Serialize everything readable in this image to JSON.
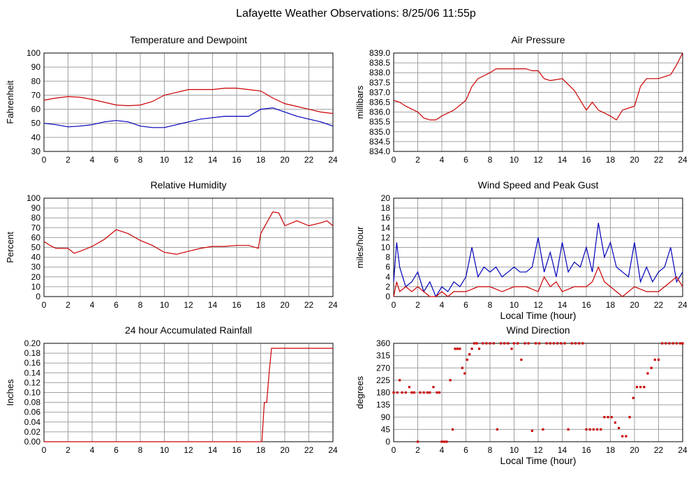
{
  "page": {
    "title": "Lafayette Weather Observations: 8/25/06 11:55p"
  },
  "colors": {
    "red": "#cc0000",
    "blue": "#0000bb",
    "grid": "#a0a0a0",
    "frame": "#000000"
  },
  "chart_data": [
    {
      "id": "temperature",
      "type": "line",
      "title": "Temperature and Dewpoint",
      "xlabel": "",
      "ylabel": "Fahrenheit",
      "xlim": [
        0,
        24
      ],
      "ylim": [
        30,
        100
      ],
      "xticks": [
        0,
        2,
        4,
        6,
        8,
        10,
        12,
        14,
        16,
        18,
        20,
        22,
        24
      ],
      "yticks": [
        30,
        40,
        50,
        60,
        70,
        80,
        90,
        100
      ],
      "ytick_labels": [
        "30",
        "40",
        "50",
        "60",
        "70",
        "80",
        "90",
        "100"
      ],
      "grid": true,
      "series": [
        {
          "color": "red",
          "x": [
            0,
            1,
            2,
            3,
            4,
            5,
            6,
            7,
            8,
            9,
            10,
            11,
            12,
            13,
            14,
            15,
            16,
            17,
            18,
            19,
            20,
            21,
            22,
            23,
            24
          ],
          "y": [
            66.5,
            68,
            69,
            68.5,
            67,
            65,
            63,
            62.5,
            63,
            65.5,
            70,
            72,
            74,
            74,
            74,
            75,
            75,
            74,
            73,
            68,
            64,
            62,
            60,
            58,
            57
          ]
        },
        {
          "color": "blue",
          "x": [
            0,
            1,
            2,
            3,
            4,
            5,
            6,
            7,
            8,
            9,
            10,
            11,
            12,
            13,
            14,
            15,
            16,
            17,
            18,
            19,
            20,
            21,
            22,
            23,
            24
          ],
          "y": [
            50,
            49,
            47.5,
            48,
            49,
            51,
            52,
            51,
            48,
            47,
            47,
            49,
            51,
            53,
            54,
            55,
            55,
            55,
            60,
            61,
            58,
            55,
            53,
            51,
            48
          ]
        }
      ]
    },
    {
      "id": "pressure",
      "type": "line",
      "title": "Air Pressure",
      "xlabel": "",
      "ylabel": "millibars",
      "xlim": [
        0,
        24
      ],
      "ylim": [
        834.0,
        839.0
      ],
      "xticks": [
        0,
        2,
        4,
        6,
        8,
        10,
        12,
        14,
        16,
        18,
        20,
        22,
        24
      ],
      "yticks": [
        834.0,
        834.5,
        835.0,
        835.5,
        836.0,
        836.5,
        837.0,
        837.5,
        838.0,
        838.5,
        839.0
      ],
      "ytick_labels": [
        "834.0",
        "834.5",
        "835.0",
        "835.5",
        "836.0",
        "836.5",
        "837.0",
        "837.5",
        "838.0",
        "838.5",
        "839.0"
      ],
      "grid": true,
      "series": [
        {
          "color": "red",
          "x": [
            0,
            0.5,
            1,
            2,
            2.5,
            3,
            3.5,
            4,
            5,
            6,
            6.5,
            7,
            8,
            8.5,
            9,
            10,
            11,
            11.5,
            12,
            12.5,
            13,
            14,
            15,
            15.5,
            16,
            16.5,
            17,
            18,
            18.5,
            19,
            20,
            20.5,
            21,
            22,
            23,
            23.5,
            24
          ],
          "y": [
            836.6,
            836.5,
            836.3,
            836.0,
            835.7,
            835.6,
            835.6,
            835.8,
            836.1,
            836.6,
            837.3,
            837.7,
            838.0,
            838.2,
            838.2,
            838.2,
            838.2,
            838.1,
            838.1,
            837.7,
            837.6,
            837.7,
            837.1,
            836.6,
            836.1,
            836.5,
            836.1,
            835.8,
            835.6,
            836.1,
            836.3,
            837.3,
            837.7,
            837.7,
            837.9,
            838.4,
            839.0
          ]
        }
      ]
    },
    {
      "id": "humidity",
      "type": "line",
      "title": "Relative Humidity",
      "xlabel": "",
      "ylabel": "Percent",
      "xlim": [
        0,
        24
      ],
      "ylim": [
        0,
        100
      ],
      "xticks": [
        0,
        2,
        4,
        6,
        8,
        10,
        12,
        14,
        16,
        18,
        20,
        22,
        24
      ],
      "yticks": [
        0,
        10,
        20,
        30,
        40,
        50,
        60,
        70,
        80,
        90,
        100
      ],
      "ytick_labels": [
        "0",
        "10",
        "20",
        "30",
        "40",
        "50",
        "60",
        "70",
        "80",
        "90",
        "100"
      ],
      "grid": true,
      "series": [
        {
          "color": "red",
          "x": [
            0,
            0.5,
            1,
            2,
            2.5,
            3,
            4,
            5,
            6,
            7,
            8,
            9,
            10,
            11,
            12,
            13,
            14,
            15,
            16,
            17,
            17.8,
            18,
            18.5,
            19,
            19.5,
            20,
            21,
            22,
            23,
            23.5,
            24
          ],
          "y": [
            56,
            52,
            49,
            49,
            44,
            46,
            51,
            58,
            68,
            64,
            57,
            52,
            45,
            43,
            46,
            49,
            51,
            51,
            52,
            52,
            49,
            64,
            75,
            86,
            85,
            72,
            77,
            72,
            75,
            77,
            72
          ]
        }
      ]
    },
    {
      "id": "wind",
      "type": "line",
      "title": "Wind Speed and Peak Gust",
      "xlabel": "Local Time (hour)",
      "ylabel": "miles/hour",
      "xlim": [
        0,
        24
      ],
      "ylim": [
        0,
        20
      ],
      "xticks": [
        0,
        2,
        4,
        6,
        8,
        10,
        12,
        14,
        16,
        18,
        20,
        22,
        24
      ],
      "yticks": [
        0,
        2,
        4,
        6,
        8,
        10,
        12,
        14,
        16,
        18,
        20
      ],
      "ytick_labels": [
        "0",
        "2",
        "4",
        "6",
        "8",
        "10",
        "12",
        "14",
        "16",
        "18",
        "20"
      ],
      "grid": true,
      "series": [
        {
          "color": "blue",
          "x": [
            0,
            0.25,
            0.5,
            0.75,
            1,
            1.5,
            2,
            2.5,
            3,
            3.5,
            4,
            4.5,
            5,
            5.5,
            6,
            6.5,
            7,
            7.5,
            8,
            8.5,
            9,
            9.5,
            10,
            10.5,
            11,
            11.5,
            12,
            12.5,
            13,
            13.5,
            14,
            14.5,
            15,
            15.5,
            16,
            16.5,
            17,
            17.5,
            18,
            18.5,
            19,
            19.5,
            20,
            20.5,
            21,
            21.5,
            22,
            22.5,
            23,
            23.5,
            24
          ],
          "y": [
            3,
            11,
            6,
            4,
            2,
            3,
            5,
            1,
            3,
            0,
            2,
            1,
            3,
            2,
            4,
            10,
            4,
            6,
            5,
            6,
            4,
            5,
            6,
            5,
            5,
            6,
            12,
            5,
            9,
            4,
            11,
            5,
            7,
            6,
            10,
            5,
            15,
            8,
            11,
            6,
            5,
            4,
            11,
            3,
            6,
            3,
            5,
            6,
            10,
            3,
            5
          ]
        },
        {
          "color": "red",
          "x": [
            0,
            0.25,
            0.5,
            1,
            1.5,
            2,
            2.5,
            3,
            3.5,
            4,
            4.5,
            5,
            6,
            7,
            8,
            9,
            10,
            11,
            12,
            12.5,
            13,
            13.5,
            14,
            15,
            16,
            16.5,
            17,
            17.5,
            18,
            18.5,
            19,
            20,
            21,
            22,
            23,
            23.5,
            24
          ],
          "y": [
            0,
            3,
            1,
            2,
            1,
            2,
            1,
            0,
            0,
            1,
            0,
            1,
            1,
            2,
            2,
            1,
            2,
            2,
            1,
            4,
            2,
            3,
            1,
            2,
            2,
            3,
            6,
            3,
            2,
            1,
            0,
            2,
            1,
            1,
            3,
            4,
            2
          ]
        }
      ]
    },
    {
      "id": "rainfall",
      "type": "line",
      "title": "24 hour Accumulated Rainfall",
      "xlabel": "",
      "ylabel": "Inches",
      "xlim": [
        0,
        24
      ],
      "ylim": [
        0,
        0.2
      ],
      "xticks": [
        0,
        2,
        4,
        6,
        8,
        10,
        12,
        14,
        16,
        18,
        20,
        22,
        24
      ],
      "yticks": [
        0,
        0.02,
        0.04,
        0.06,
        0.08,
        0.1,
        0.12,
        0.14,
        0.16,
        0.18,
        0.2
      ],
      "ytick_labels": [
        "0.00",
        "0.02",
        "0.04",
        "0.06",
        "0.08",
        "0.10",
        "0.12",
        "0.14",
        "0.16",
        "0.18",
        "0.20"
      ],
      "grid": true,
      "series": [
        {
          "color": "red",
          "x": [
            0,
            18.1,
            18.3,
            18.5,
            18.7,
            18.9,
            24
          ],
          "y": [
            0,
            0,
            0.08,
            0.08,
            0.14,
            0.19,
            0.19
          ]
        }
      ]
    },
    {
      "id": "direction",
      "type": "scatter",
      "title": "Wind Direction",
      "xlabel": "Local Time (hour)",
      "ylabel": "degrees",
      "xlim": [
        0,
        24
      ],
      "ylim": [
        0,
        360
      ],
      "xticks": [
        0,
        2,
        4,
        6,
        8,
        10,
        12,
        14,
        16,
        18,
        20,
        22,
        24
      ],
      "yticks": [
        0,
        45,
        90,
        135,
        180,
        225,
        270,
        315,
        360
      ],
      "ytick_labels": [
        "0",
        "45",
        "90",
        "135",
        "180",
        "225",
        "270",
        "315",
        "360"
      ],
      "grid": true,
      "series": [
        {
          "color": "red",
          "x": [
            0,
            0.3,
            0.5,
            0.7,
            1,
            1.3,
            1.5,
            1.7,
            2,
            2.2,
            2.5,
            2.8,
            3,
            3.3,
            3.6,
            3.8,
            4,
            4.2,
            4.4,
            4.7,
            4.9,
            5.1,
            5.3,
            5.5,
            5.7,
            5.9,
            6.1,
            6.3,
            6.5,
            6.7,
            6.9,
            7.1,
            7.4,
            7.7,
            8,
            8.3,
            8.6,
            8.9,
            9.2,
            9.5,
            9.8,
            10,
            10.3,
            10.6,
            10.9,
            11.2,
            11.5,
            11.8,
            12.1,
            12.4,
            12.7,
            13,
            13.3,
            13.6,
            13.9,
            14.2,
            14.5,
            14.8,
            15.1,
            15.4,
            15.7,
            16,
            16.3,
            16.6,
            16.9,
            17.2,
            17.5,
            17.8,
            18.1,
            18.4,
            18.7,
            19,
            19.3,
            19.6,
            19.9,
            20.2,
            20.5,
            20.8,
            21.1,
            21.4,
            21.7,
            22,
            22.3,
            22.6,
            22.9,
            23.2,
            23.5,
            23.8,
            24
          ],
          "y": [
            180,
            180,
            225,
            180,
            180,
            200,
            180,
            180,
            0,
            180,
            180,
            180,
            180,
            200,
            180,
            180,
            0,
            0,
            0,
            225,
            45,
            340,
            340,
            340,
            270,
            250,
            300,
            320,
            340,
            360,
            360,
            340,
            360,
            360,
            360,
            360,
            45,
            360,
            360,
            360,
            340,
            360,
            360,
            300,
            360,
            360,
            40,
            360,
            360,
            45,
            360,
            360,
            360,
            360,
            360,
            360,
            45,
            360,
            360,
            360,
            360,
            45,
            45,
            45,
            45,
            45,
            90,
            90,
            90,
            70,
            50,
            20,
            20,
            90,
            160,
            200,
            200,
            200,
            250,
            270,
            300,
            300,
            360,
            360,
            360,
            360,
            360,
            360,
            360
          ]
        }
      ]
    }
  ]
}
